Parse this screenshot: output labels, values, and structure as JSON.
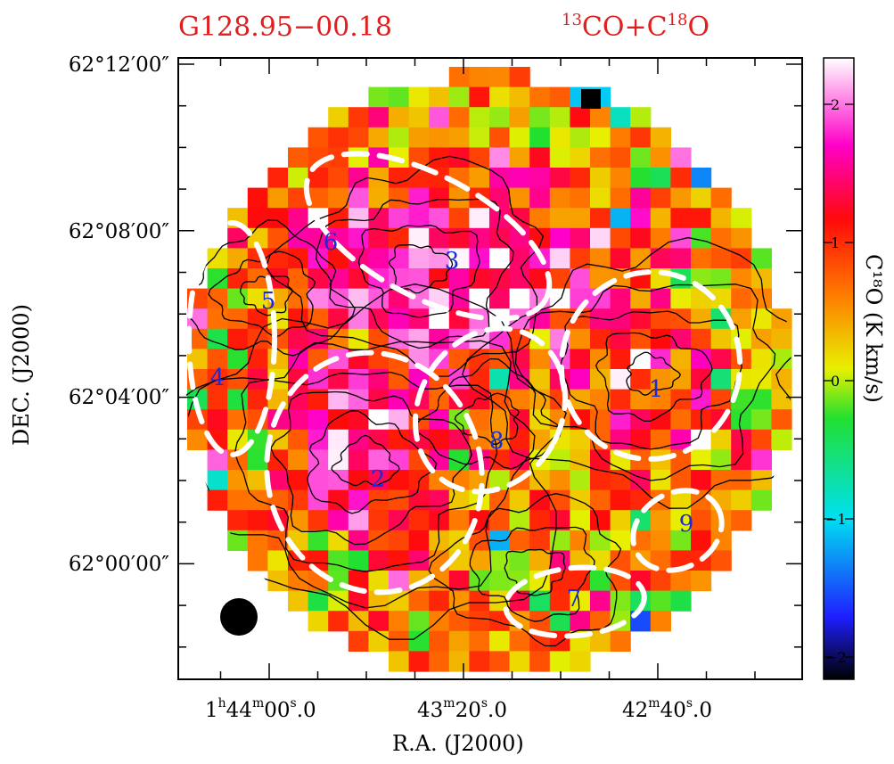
{
  "figure": {
    "title_left": "G128.95−00.18",
    "title_right_prefix": "13",
    "title_right_mid": "CO+C",
    "title_right_sup": "18",
    "title_right_suffix": "O",
    "xlabel": "R.A. (J2000)",
    "ylabel": "DEC. (J2000)",
    "colorbar_label": "C¹⁸O (K km/s)",
    "x_ticks": [
      {
        "h": "1",
        "h_unit": "h",
        "m": "44",
        "m_unit": "m",
        "s": "00",
        "s_unit": "s",
        "frac": ".0"
      },
      {
        "h": "",
        "h_unit": "",
        "m": "43",
        "m_unit": "m",
        "s": "20",
        "s_unit": "s",
        "frac": ".0"
      },
      {
        "h": "",
        "h_unit": "",
        "m": "42",
        "m_unit": "m",
        "s": "40",
        "s_unit": "s",
        "frac": ".0"
      }
    ],
    "y_ticks": [
      "62°12′00″",
      "62°08′00″",
      "62°04′00″",
      "62°00′00″"
    ],
    "colorbar_ticks": [
      "2",
      "1",
      "0",
      "−1",
      "−2"
    ],
    "colorbar_range": [
      -2.15,
      2.35
    ],
    "core_labels": [
      "1",
      "2",
      "3",
      "4",
      "5",
      "6",
      "7",
      "8",
      "9"
    ]
  },
  "colors": {
    "title": "#e02020",
    "core_label": "#1b2bd6",
    "clump_outline": "#ffffff",
    "contour": "#000000"
  }
}
